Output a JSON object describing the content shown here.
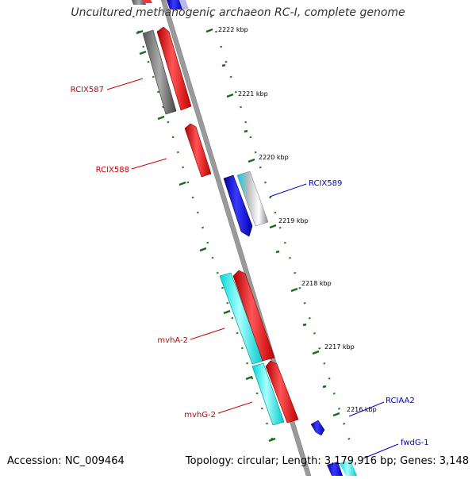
{
  "title": "Uncultured methanogenic archaeon RC-I, complete genome",
  "accession": "Accession: NC_009464",
  "topology": "Topology: circular; Length: 3,179,916 bp; Genes: 3,148",
  "colors": {
    "forward_cds": "#ff0000",
    "reverse_cds": "#0000ff",
    "cyan_feature": "#00ffff",
    "gray_feature": "#808080",
    "tick_green": "#1a7a1a",
    "backbone": "#999999",
    "label_red": "#cc0000",
    "label_blue": "#0000cc"
  },
  "scale_labels": [
    "2222 kbp",
    "2221 kbp",
    "2220 kbp",
    "2219 kbp",
    "2218 kbp",
    "2217 kbp",
    "2216 kbp"
  ],
  "gene_labels": {
    "RCIX587": "RCIX587",
    "RCIX588": "RCIX588",
    "RCIX589": "RCIX589",
    "mvhA_2": "mvhA-2",
    "mvhG_2": "mvhG-2",
    "RCIAA2": "RCIAA2",
    "fwdG_1": "fwdG-1"
  }
}
